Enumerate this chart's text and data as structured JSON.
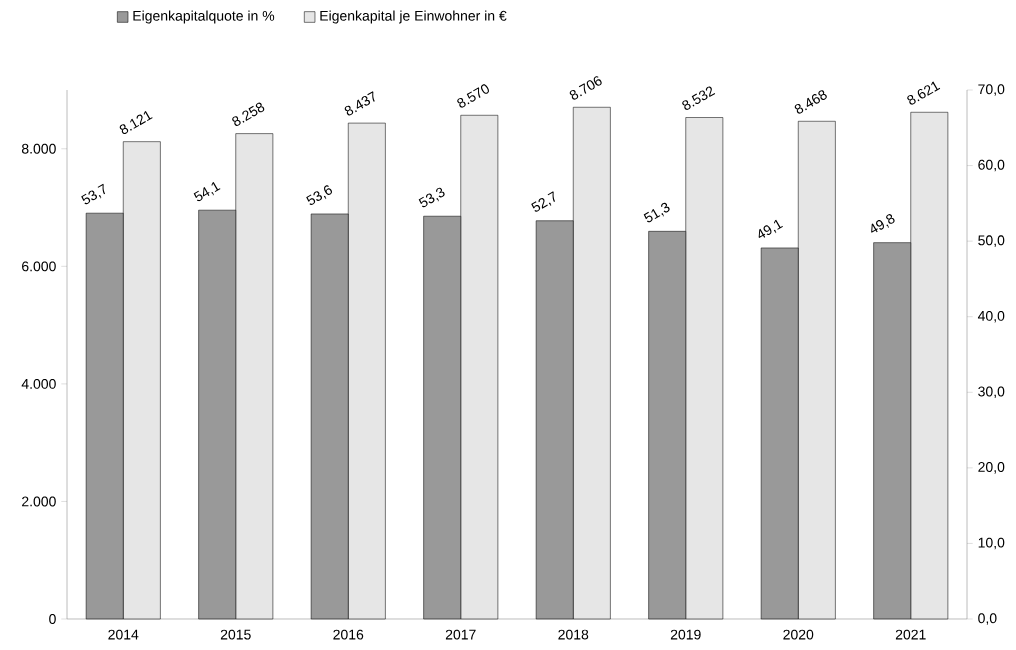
{
  "chart_data": {
    "type": "bar",
    "categories": [
      "2014",
      "2015",
      "2016",
      "2017",
      "2018",
      "2019",
      "2020",
      "2021"
    ],
    "series": [
      {
        "name": "Eigenkapitalquote in %",
        "color": "#999999",
        "axis": "y2",
        "values": [
          53.7,
          54.1,
          53.6,
          53.3,
          52.7,
          51.3,
          49.1,
          49.8
        ],
        "value_labels": [
          "53,7",
          "54,1",
          "53,6",
          "53,3",
          "52,7",
          "51,3",
          "49,1",
          "49,8"
        ]
      },
      {
        "name": "Eigenkapital je Einwohner in €",
        "color": "#e6e6e6",
        "values": [
          8121,
          8258,
          8437,
          8570,
          8706,
          8532,
          8468,
          8621
        ],
        "value_labels": [
          "8.121",
          "8.258",
          "8.437",
          "8.570",
          "8.706",
          "8.532",
          "8.468",
          "8.621"
        ]
      }
    ],
    "ylim": [
      0,
      9000
    ],
    "yticks": [
      0,
      {
        "value": 2000,
        "label": "2.000"
      },
      {
        "value": 4000,
        "label": "4.000"
      },
      {
        "value": 6000,
        "label": "6.000"
      },
      {
        "value": 8000,
        "label": "8.000"
      }
    ],
    "y2lim": [
      0,
      70
    ],
    "y2ticks": [
      {
        "value": 0,
        "label": "0,0"
      },
      {
        "value": 10,
        "label": "10,0"
      },
      {
        "value": 20,
        "label": "20,0"
      },
      {
        "value": 30,
        "label": "30,0"
      },
      {
        "value": 40,
        "label": "40,0"
      },
      {
        "value": 50,
        "label": "50,0"
      },
      {
        "value": 60,
        "label": "60,0"
      },
      {
        "value": 70,
        "label": "70,0"
      }
    ],
    "legend": "top left"
  }
}
